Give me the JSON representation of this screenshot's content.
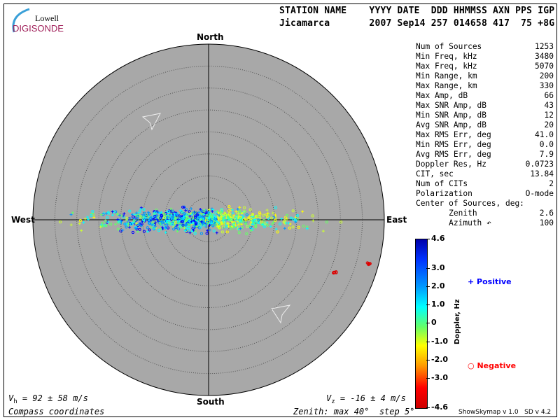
{
  "header": {
    "labels": "STATION NAME    YYYY DATE  DDD HHMMSS AXN PPS IGP",
    "values": "Jicamarca       2007 Sep14 257 014658 417  75 +8G"
  },
  "logo": {
    "line1": "Lowell",
    "line2": "DIGISONDE"
  },
  "stats": [
    {
      "label": "Num of Sources",
      "value": "1253"
    },
    {
      "label": "Min Freq, kHz",
      "value": "3480"
    },
    {
      "label": "Max Freq, kHz",
      "value": "5070"
    },
    {
      "label": "Min Range, km",
      "value": "200"
    },
    {
      "label": "Max Range, km",
      "value": "330"
    },
    {
      "label": "Max Amp, dB",
      "value": "66"
    },
    {
      "label": "Max SNR Amp, dB",
      "value": "43"
    },
    {
      "label": "Min SNR Amp, dB",
      "value": "12"
    },
    {
      "label": "Avg SNR Amp, dB",
      "value": "20"
    },
    {
      "label": "Max RMS Err, deg",
      "value": "41.0"
    },
    {
      "label": "Min RMS Err, deg",
      "value": "0.0"
    },
    {
      "label": "Avg RMS Err, deg",
      "value": "7.9"
    },
    {
      "label": "Doppler Res, Hz",
      "value": "0.0723"
    },
    {
      "label": "CIT, sec",
      "value": "13.84"
    },
    {
      "label": "Num of CITs",
      "value": "2"
    },
    {
      "label": "Polarization",
      "value": "O-mode"
    },
    {
      "label": "Center of Sources, deg:",
      "value": ""
    },
    {
      "label": "       Zenith",
      "value": "2.6"
    },
    {
      "label": "       Azimuth ↶",
      "value": "100"
    }
  ],
  "directions": {
    "north": "North",
    "south": "South",
    "east": "East",
    "west": "West"
  },
  "footer": {
    "vh": "V",
    "vh_sub": "h",
    "vh_val": " = 92 ± 58 m/s",
    "vz": "V",
    "vz_sub": "z",
    "vz_val": " = -16 ± 4 m/s",
    "coords": "Compass coordinates",
    "zenith": "Zenith: max 40°  step 5°",
    "version": "ShowSkymap v 1.0   SD v 4.2"
  },
  "colorbar": {
    "title": "Doppler, Hz",
    "ticks": [
      "4.6",
      "3.0",
      "2.0",
      "1.0",
      "0",
      "-1.0",
      "-2.0",
      "-3.0",
      "-4.6"
    ]
  },
  "legend": {
    "positive": "Positive",
    "negative": "Negative",
    "positive_color": "#0000ff",
    "negative_color": "#ff0000"
  },
  "colors": {
    "plot_bg": "#a8a8a8"
  }
}
